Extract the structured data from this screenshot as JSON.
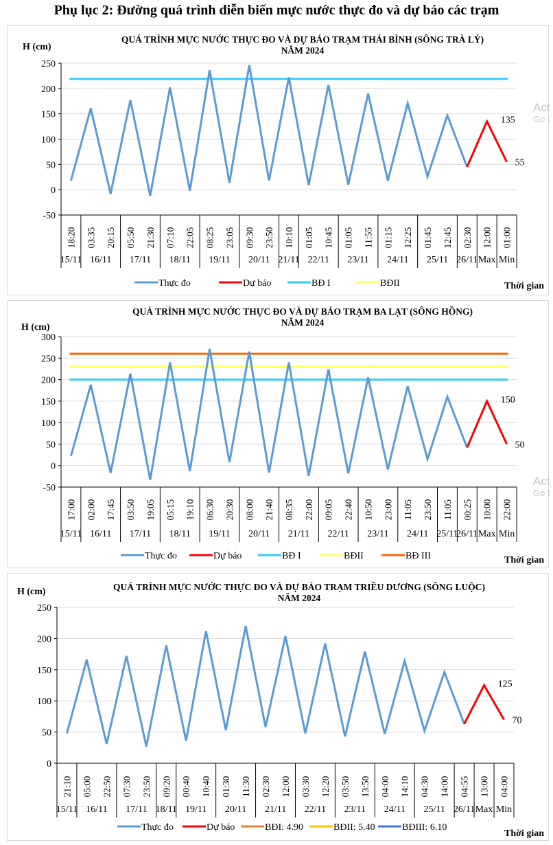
{
  "page_title": "Phụ lục 2: Đường quá trình diễn biến mực nước thực đo và dự báo các trạm",
  "watermark": {
    "line1": "Act",
    "line2": "Go t"
  },
  "chart_data": [
    {
      "type": "line",
      "title_line1": "QUÁ TRÌNH MỰC NƯỚC THỰC ĐO VÀ DỰ BÁO TRẠM THÁI BÌNH (SÔNG TRÀ LÝ)",
      "title_line2": "NĂM 2024",
      "ylabel": "H (cm)",
      "xlabel": "Thời gian",
      "ylim": [
        -50,
        250
      ],
      "yticks": [
        -50,
        0,
        50,
        100,
        150,
        200,
        250
      ],
      "grid": true,
      "times": [
        "18:20",
        "03:35",
        "20:15",
        "05:50",
        "21:30",
        "07:10",
        "22:05",
        "08:25",
        "23:05",
        "09:30",
        "23:50",
        "10:10",
        "01:05",
        "10:45",
        "01:05",
        "11:55",
        "01:15",
        "12:25",
        "01:45",
        "12:45",
        "02:30",
        "12:00",
        "01:00"
      ],
      "date_groups": [
        {
          "label": "15/11",
          "span": 1
        },
        {
          "label": "16/11",
          "span": 2
        },
        {
          "label": "17/11",
          "span": 2
        },
        {
          "label": "18/11",
          "span": 2
        },
        {
          "label": "19/11",
          "span": 2
        },
        {
          "label": "20/11",
          "span": 2
        },
        {
          "label": "21/11",
          "span": 1
        },
        {
          "label": "22/11",
          "span": 2
        },
        {
          "label": "23/11",
          "span": 2
        },
        {
          "label": "24/11",
          "span": 2
        },
        {
          "label": "25/11",
          "span": 2
        },
        {
          "label": "26/11",
          "span": 1
        },
        {
          "label": "Max",
          "span": 1
        },
        {
          "label": "Min",
          "span": 1
        }
      ],
      "series": [
        {
          "name": "Thực đo",
          "color": "#5b9bd5",
          "values": [
            18,
            161,
            -8,
            177,
            -12,
            202,
            -2,
            236,
            14,
            246,
            18,
            222,
            9,
            207,
            10,
            190,
            18,
            171,
            26,
            147,
            45,
            null,
            null
          ]
        },
        {
          "name": "Dự báo",
          "color": "#ff0000",
          "values": [
            null,
            null,
            null,
            null,
            null,
            null,
            null,
            null,
            null,
            null,
            null,
            null,
            null,
            null,
            null,
            null,
            null,
            null,
            null,
            null,
            45,
            135,
            55
          ]
        },
        {
          "name": "BĐ I",
          "color": "#33ccff",
          "constant": 219
        },
        {
          "name": "BĐII",
          "color": "#ffff66",
          "constant": null
        }
      ],
      "annotations": [
        {
          "text": "135",
          "value": 135
        },
        {
          "text": "55",
          "value": 55
        }
      ],
      "legend": "bottom"
    },
    {
      "type": "line",
      "title_line1": "QUÁ TRÌNH MỰC NƯỚC THỰC ĐO VÀ DỰ BÁO TRẠM BA LẠT (SÔNG HỒNG)",
      "title_line2": "NĂM 2024",
      "ylabel": "H (cm)",
      "xlabel": "Thời gian",
      "ylim": [
        -50,
        300
      ],
      "yticks": [
        -50,
        0,
        50,
        100,
        150,
        200,
        250,
        300
      ],
      "grid": true,
      "times": [
        "17:00",
        "02:00",
        "17:45",
        "03:50",
        "19:05",
        "05:15",
        "19:10",
        "06:30",
        "20:30",
        "08:00",
        "21:40",
        "08:35",
        "22:00",
        "09:05",
        "22:40",
        "10:50",
        "23:00",
        "11:05",
        "23:50",
        "11:05",
        "00:25",
        "10:00",
        "22:00"
      ],
      "date_groups": [
        {
          "label": "15/11",
          "span": 1
        },
        {
          "label": "16/11",
          "span": 2
        },
        {
          "label": "17/11",
          "span": 2
        },
        {
          "label": "18/11",
          "span": 2
        },
        {
          "label": "19/11",
          "span": 2
        },
        {
          "label": "20/11",
          "span": 2
        },
        {
          "label": "21/11",
          "span": 2
        },
        {
          "label": "22/11",
          "span": 2
        },
        {
          "label": "23/11",
          "span": 2
        },
        {
          "label": "24/11",
          "span": 2
        },
        {
          "label": "25/11",
          "span": 1
        },
        {
          "label": "26/11",
          "span": 1
        },
        {
          "label": "Max",
          "span": 1
        },
        {
          "label": "Min",
          "span": 1
        }
      ],
      "series": [
        {
          "name": "Thực đo",
          "color": "#5b9bd5",
          "values": [
            22,
            188,
            -17,
            214,
            -33,
            240,
            -13,
            271,
            8,
            265,
            -16,
            240,
            -24,
            224,
            -18,
            205,
            -9,
            185,
            15,
            160,
            42,
            null,
            null
          ]
        },
        {
          "name": "Dự báo",
          "color": "#ff0000",
          "values": [
            null,
            null,
            null,
            null,
            null,
            null,
            null,
            null,
            null,
            null,
            null,
            null,
            null,
            null,
            null,
            null,
            null,
            null,
            null,
            null,
            42,
            150,
            50
          ]
        },
        {
          "name": "BĐ I",
          "color": "#33ccff",
          "constant": 200
        },
        {
          "name": "BĐII",
          "color": "#ffff66",
          "constant": 230
        },
        {
          "name": "BĐ III",
          "color": "#ff6600",
          "constant": 260
        }
      ],
      "annotations": [
        {
          "text": "150",
          "value": 150
        },
        {
          "text": "50",
          "value": 50
        }
      ],
      "legend": "bottom"
    },
    {
      "type": "line",
      "title_line1": "QUÁ TRÌNH MỰC NƯỚC THỰC ĐO VÀ DỰ BÁO TRẠM TRIỀU DƯƠNG (SÔNG LUỘC)",
      "title_line2": "NĂM 2024",
      "ylabel": "H (cm)",
      "xlabel": "Thời gian",
      "ylim": [
        0,
        250
      ],
      "yticks": [
        0,
        50,
        100,
        150,
        200,
        250
      ],
      "grid": true,
      "times": [
        "21:10",
        "05:00",
        "22:50",
        "07:30",
        "23:50",
        "09:20",
        "00:40",
        "10:40",
        "01:30",
        "11:30",
        "02:30",
        "12:00",
        "03:30",
        "12:20",
        "03:50",
        "13:50",
        "04:00",
        "14:10",
        "04:30",
        "14:00",
        "04:55",
        "13:00",
        "04:00"
      ],
      "date_groups": [
        {
          "label": "15/11",
          "span": 1
        },
        {
          "label": "16/11",
          "span": 2
        },
        {
          "label": "17/11",
          "span": 2
        },
        {
          "label": "18/11",
          "span": 1
        },
        {
          "label": "19/11",
          "span": 2
        },
        {
          "label": "20/11",
          "span": 2
        },
        {
          "label": "21/11",
          "span": 2
        },
        {
          "label": "22/11",
          "span": 2
        },
        {
          "label": "23/11",
          "span": 2
        },
        {
          "label": "24/11",
          "span": 2
        },
        {
          "label": "25/11",
          "span": 2
        },
        {
          "label": "26/11",
          "span": 1
        },
        {
          "label": "Max",
          "span": 1
        },
        {
          "label": "Min",
          "span": 1
        }
      ],
      "series": [
        {
          "name": "Thực đo",
          "color": "#5b9bd5",
          "values": [
            48,
            166,
            31,
            172,
            27,
            189,
            36,
            212,
            53,
            220,
            58,
            204,
            48,
            192,
            43,
            179,
            47,
            164,
            52,
            146,
            63,
            null,
            null
          ]
        },
        {
          "name": "Dự báo",
          "color": "#ff0000",
          "values": [
            null,
            null,
            null,
            null,
            null,
            null,
            null,
            null,
            null,
            null,
            null,
            null,
            null,
            null,
            null,
            null,
            null,
            null,
            null,
            null,
            63,
            125,
            70
          ]
        },
        {
          "name": "BĐI: 4.90",
          "color": "#ed7d31",
          "constant": null
        },
        {
          "name": "BĐII: 5.40",
          "color": "#ffc000",
          "constant": null
        },
        {
          "name": "BĐIII: 6.10",
          "color": "#4472c4",
          "constant": null
        }
      ],
      "annotations": [
        {
          "text": "125",
          "value": 125
        },
        {
          "text": "70",
          "value": 70
        }
      ],
      "legend": "bottom"
    }
  ]
}
